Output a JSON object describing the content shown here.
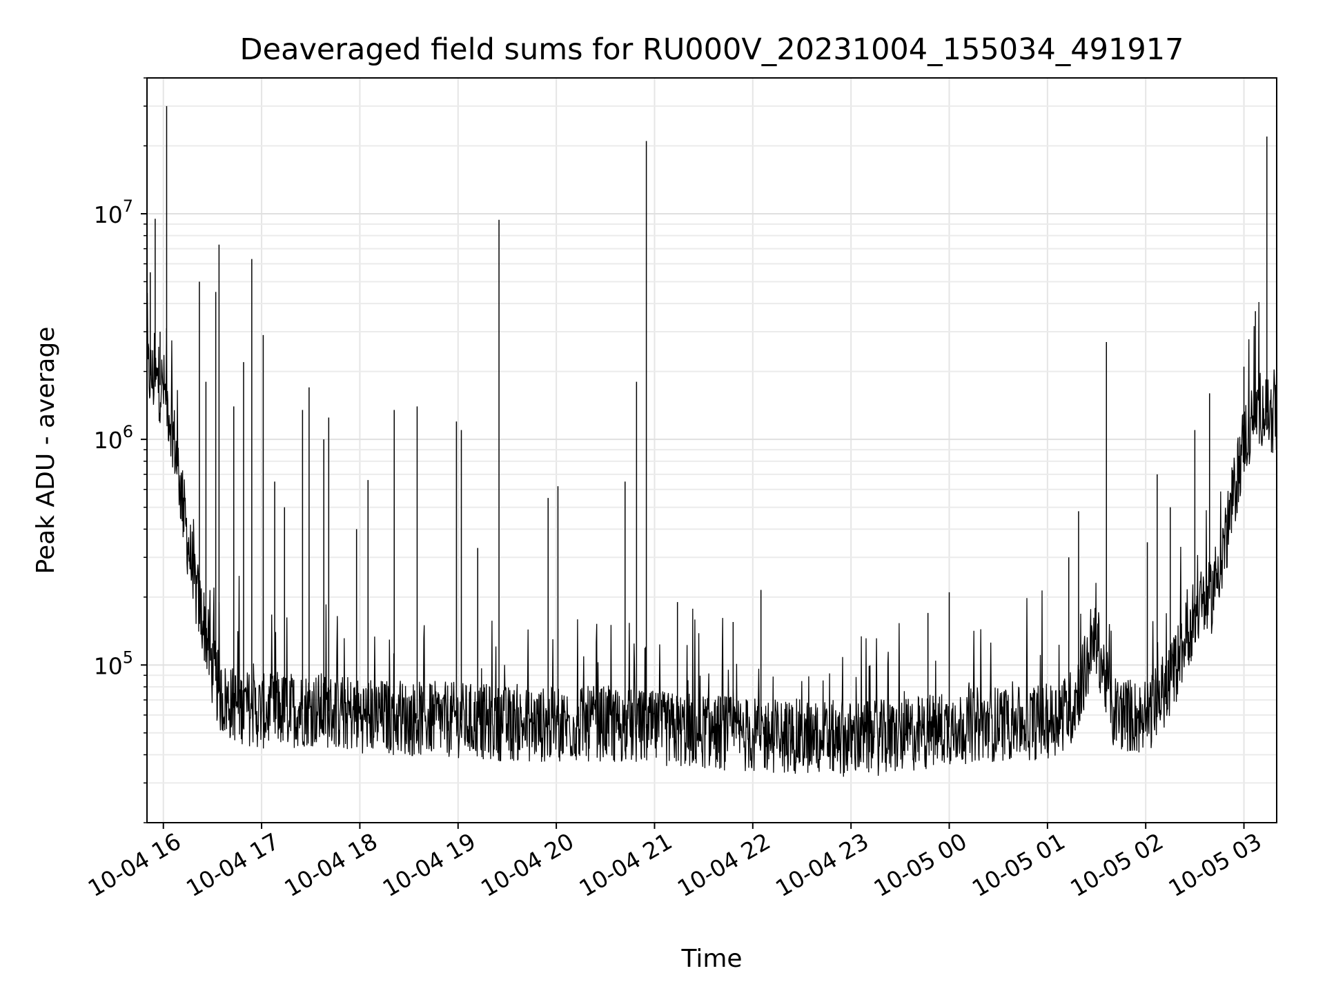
{
  "chart_data": {
    "type": "line",
    "title": "Deaveraged field sums for RU000V_20231004_155034_491917",
    "xlabel": "Time",
    "ylabel": "Peak ADU - average",
    "yscale": "log",
    "ylim": [
      20000,
      40000000
    ],
    "xlim": [
      "2023-10-04 15:50",
      "2023-10-05 03:20"
    ],
    "x_ticks": [
      "2023-10-04 16:00",
      "2023-10-04 17:00",
      "2023-10-04 18:00",
      "2023-10-04 19:00",
      "2023-10-04 20:00",
      "2023-10-04 21:00",
      "2023-10-04 22:00",
      "2023-10-04 23:00",
      "2023-10-05 00:00",
      "2023-10-05 01:00",
      "2023-10-05 02:00",
      "2023-10-05 03:00"
    ],
    "x_tick_labels": [
      "10-04 16",
      "10-04 17",
      "10-04 18",
      "10-04 19",
      "10-04 20",
      "10-04 21",
      "10-04 22",
      "10-04 23",
      "10-05 00",
      "10-05 01",
      "10-05 02",
      "10-05 03"
    ],
    "y_ticks": [
      100000,
      1000000,
      10000000
    ],
    "y_tick_labels": [
      {
        "base": "10",
        "exp": "5"
      },
      {
        "base": "10",
        "exp": "6"
      },
      {
        "base": "10",
        "exp": "7"
      }
    ],
    "grid": true,
    "line_color": "#000000",
    "series": [
      {
        "x": [
          "2023-10-04 15:50",
          "2023-10-04 15:55",
          "2023-10-04 16:00",
          "2023-10-04 16:05",
          "2023-10-04 16:10",
          "2023-10-04 16:15",
          "2023-10-04 16:20",
          "2023-10-04 16:25",
          "2023-10-04 16:30",
          "2023-10-04 16:35",
          "2023-10-04 16:40",
          "2023-10-04 16:50",
          "2023-10-04 17:00",
          "2023-10-04 17:30",
          "2023-10-04 18:00",
          "2023-10-04 18:30",
          "2023-10-04 19:00",
          "2023-10-04 19:30",
          "2023-10-04 20:00",
          "2023-10-04 20:30",
          "2023-10-04 21:00",
          "2023-10-04 21:30",
          "2023-10-04 22:00",
          "2023-10-04 22:30",
          "2023-10-04 23:00",
          "2023-10-04 23:30",
          "2023-10-05 00:00",
          "2023-10-05 00:30",
          "2023-10-05 01:00",
          "2023-10-05 01:15",
          "2023-10-05 01:30",
          "2023-10-05 01:40",
          "2023-10-05 01:50",
          "2023-10-05 02:00",
          "2023-10-05 02:15",
          "2023-10-05 02:30",
          "2023-10-05 02:40",
          "2023-10-05 02:50",
          "2023-10-05 03:00",
          "2023-10-05 03:10",
          "2023-10-05 03:20"
        ],
        "values": [
          2000000,
          1800000,
          1700000,
          1200000,
          650000,
          350000,
          210000,
          150000,
          95000,
          72000,
          68000,
          65000,
          62000,
          64000,
          60000,
          58000,
          57000,
          55000,
          54000,
          55000,
          52000,
          51000,
          49000,
          48000,
          47000,
          48000,
          53000,
          55000,
          56000,
          65000,
          130000,
          62000,
          60000,
          57000,
          85000,
          170000,
          200000,
          400000,
          1000000,
          1400000,
          1200000
        ],
        "spikes": [
          {
            "x": "2023-10-04 15:52",
            "y": 5500000
          },
          {
            "x": "2023-10-04 15:55",
            "y": 9500000
          },
          {
            "x": "2023-10-04 15:58",
            "y": 3000000
          },
          {
            "x": "2023-10-04 16:02",
            "y": 30000000
          },
          {
            "x": "2023-10-04 16:22",
            "y": 5000000
          },
          {
            "x": "2023-10-04 16:26",
            "y": 1800000
          },
          {
            "x": "2023-10-04 16:32",
            "y": 4500000
          },
          {
            "x": "2023-10-04 16:34",
            "y": 7300000
          },
          {
            "x": "2023-10-04 16:43",
            "y": 1400000
          },
          {
            "x": "2023-10-04 16:49",
            "y": 2200000
          },
          {
            "x": "2023-10-04 16:54",
            "y": 6300000
          },
          {
            "x": "2023-10-04 17:01",
            "y": 2900000
          },
          {
            "x": "2023-10-04 17:08",
            "y": 650000
          },
          {
            "x": "2023-10-04 17:14",
            "y": 500000
          },
          {
            "x": "2023-10-04 17:25",
            "y": 1350000
          },
          {
            "x": "2023-10-04 17:29",
            "y": 1700000
          },
          {
            "x": "2023-10-04 17:38",
            "y": 1000000
          },
          {
            "x": "2023-10-04 17:41",
            "y": 1250000
          },
          {
            "x": "2023-10-04 17:58",
            "y": 400000
          },
          {
            "x": "2023-10-04 18:05",
            "y": 660000
          },
          {
            "x": "2023-10-04 18:21",
            "y": 1350000
          },
          {
            "x": "2023-10-04 18:35",
            "y": 1400000
          },
          {
            "x": "2023-10-04 18:59",
            "y": 1200000
          },
          {
            "x": "2023-10-04 19:02",
            "y": 1100000
          },
          {
            "x": "2023-10-04 19:12",
            "y": 330000
          },
          {
            "x": "2023-10-04 19:25",
            "y": 9400000
          },
          {
            "x": "2023-10-04 19:55",
            "y": 550000
          },
          {
            "x": "2023-10-04 20:01",
            "y": 620000
          },
          {
            "x": "2023-10-04 20:42",
            "y": 650000
          },
          {
            "x": "2023-10-04 20:49",
            "y": 1800000
          },
          {
            "x": "2023-10-04 20:55",
            "y": 21000000
          },
          {
            "x": "2023-10-04 21:14",
            "y": 190000
          },
          {
            "x": "2023-10-04 21:48",
            "y": 155000
          },
          {
            "x": "2023-10-04 22:05",
            "y": 215000
          },
          {
            "x": "2023-10-04 23:47",
            "y": 170000
          },
          {
            "x": "2023-10-05 00:00",
            "y": 210000
          },
          {
            "x": "2023-10-05 01:13",
            "y": 300000
          },
          {
            "x": "2023-10-05 01:19",
            "y": 480000
          },
          {
            "x": "2023-10-05 01:36",
            "y": 2700000
          },
          {
            "x": "2023-10-05 02:01",
            "y": 350000
          },
          {
            "x": "2023-10-05 02:07",
            "y": 700000
          },
          {
            "x": "2023-10-05 02:15",
            "y": 500000
          },
          {
            "x": "2023-10-05 02:30",
            "y": 1100000
          },
          {
            "x": "2023-10-05 02:39",
            "y": 1600000
          },
          {
            "x": "2023-10-05 03:00",
            "y": 2100000
          },
          {
            "x": "2023-10-05 03:07",
            "y": 3700000
          },
          {
            "x": "2023-10-05 03:14",
            "y": 22000000
          }
        ]
      }
    ]
  }
}
